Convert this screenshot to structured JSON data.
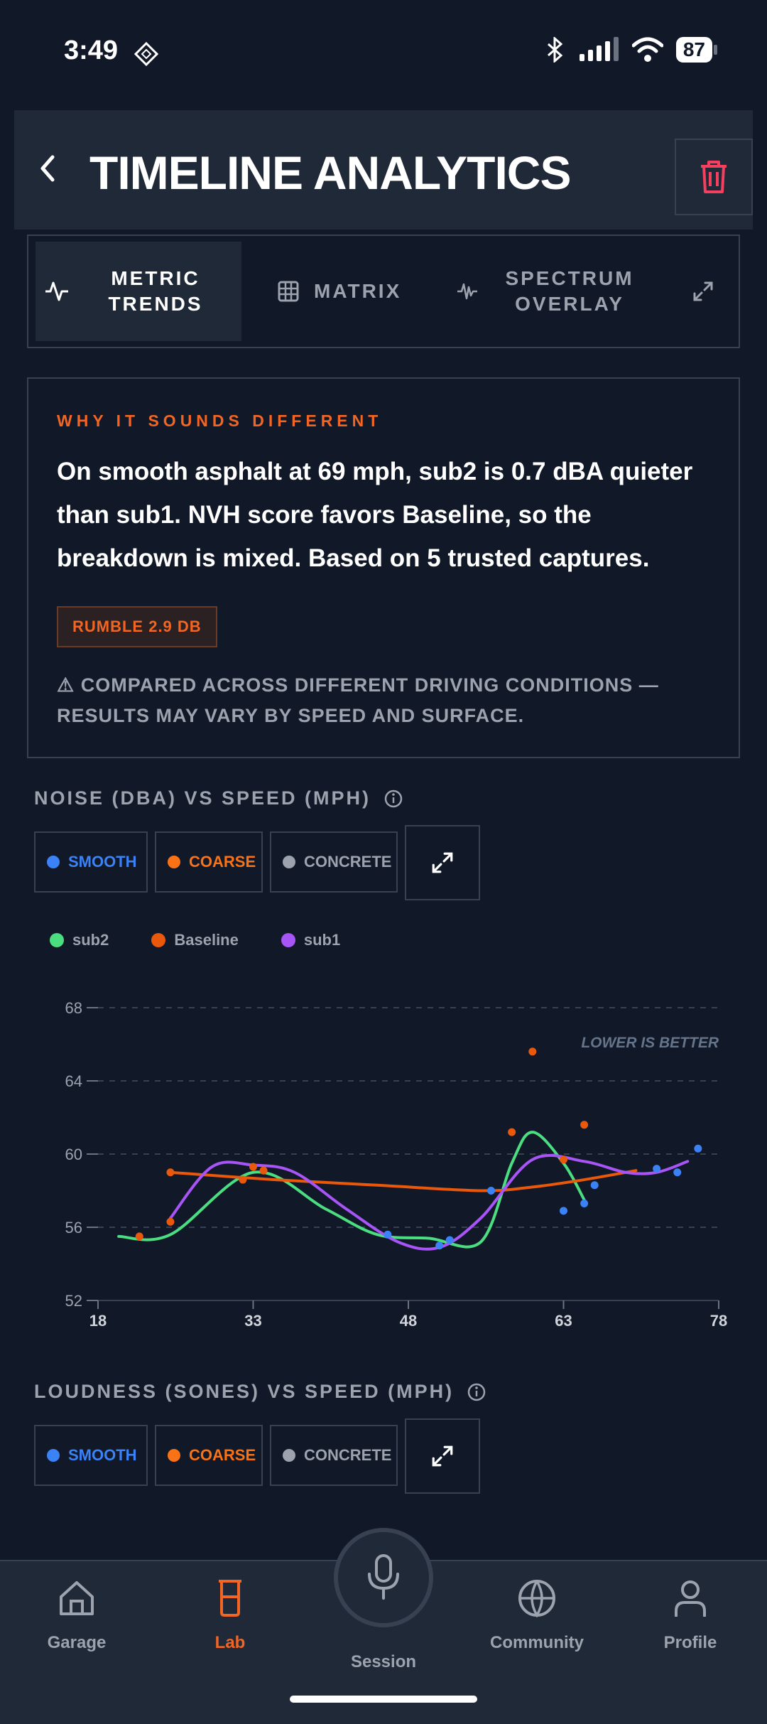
{
  "status": {
    "time": "3:49",
    "battery": "87"
  },
  "header": {
    "title": "TIMELINE ANALYTICS"
  },
  "tabs": [
    {
      "label_line1": "METRIC",
      "label_line2": "TRENDS",
      "active": true
    },
    {
      "label_line1": "MATRIX",
      "label_line2": "",
      "active": false
    },
    {
      "label_line1": "SPECTRUM",
      "label_line2": "OVERLAY",
      "active": false
    }
  ],
  "why": {
    "kicker": "WHY IT SOUNDS DIFFERENT",
    "body": "On smooth asphalt at 69 mph, sub2 is 0.7 dBA quieter than sub1. NVH score favors Baseline, so the breakdown is mixed. Based on 5 trusted captures.",
    "chip": "RUMBLE 2.9 DB",
    "warning": "⚠ COMPARED ACROSS DIFFERENT DRIVING CONDITIONS — RESULTS MAY VARY BY SPEED AND SURFACE."
  },
  "noise_section": {
    "title": "NOISE (DBA) VS SPEED (MPH)"
  },
  "loudness_section": {
    "title": "LOUDNESS (SONES) VS SPEED (MPH)"
  },
  "filters": {
    "smooth": "SMOOTH",
    "coarse": "COARSE",
    "concrete": "CONCRETE",
    "colors": {
      "smooth": "#3b82f6",
      "coarse": "#f97316",
      "concrete": "#9ca3af"
    }
  },
  "chart_data": {
    "type": "line",
    "xlim": [
      18,
      78
    ],
    "ylim": [
      52,
      68
    ],
    "x_ticks": [
      18,
      33,
      48,
      63,
      78
    ],
    "y_ticks": [
      52,
      56,
      60,
      64,
      68
    ],
    "annotation": "LOWER IS BETTER",
    "grid": true,
    "legend_position": "top-left",
    "series": [
      {
        "name": "sub2",
        "color": "#4ade80",
        "points": [
          [
            20,
            55.5
          ],
          [
            25,
            55.6
          ],
          [
            33,
            59
          ],
          [
            40,
            57
          ],
          [
            45,
            55.6
          ],
          [
            50,
            55.4
          ],
          [
            55,
            55.2
          ],
          [
            58,
            59.5
          ],
          [
            60,
            61.2
          ],
          [
            63,
            59.5
          ],
          [
            65,
            57.5
          ]
        ]
      },
      {
        "name": "Baseline",
        "color": "#ea580c",
        "points": [
          [
            25,
            59
          ],
          [
            35,
            58.6
          ],
          [
            45,
            58.3
          ],
          [
            55,
            58
          ],
          [
            60,
            58.2
          ],
          [
            65,
            58.6
          ],
          [
            70,
            59.1
          ]
        ]
      },
      {
        "name": "sub1",
        "color": "#a855f7",
        "points": [
          [
            25,
            56.5
          ],
          [
            29,
            59.3
          ],
          [
            33,
            59.4
          ],
          [
            37,
            59
          ],
          [
            42,
            57
          ],
          [
            47,
            55.2
          ],
          [
            51,
            54.9
          ],
          [
            55,
            56.5
          ],
          [
            60,
            59.7
          ],
          [
            65,
            59.6
          ],
          [
            69,
            59
          ],
          [
            72,
            59
          ],
          [
            75,
            59.6
          ]
        ]
      }
    ],
    "scatter": [
      {
        "surface": "smooth",
        "color": "#3b82f6",
        "points": [
          [
            46,
            55.6
          ],
          [
            51,
            55
          ],
          [
            52,
            55.3
          ],
          [
            56,
            58
          ],
          [
            63,
            56.9
          ],
          [
            65,
            57.3
          ],
          [
            66,
            58.3
          ],
          [
            72,
            59.2
          ],
          [
            74,
            59
          ],
          [
            76,
            60.3
          ]
        ]
      },
      {
        "surface": "coarse",
        "color": "#ea580c",
        "points": [
          [
            22,
            55.5
          ],
          [
            25,
            59
          ],
          [
            25,
            56.3
          ],
          [
            32,
            58.6
          ],
          [
            33,
            59.3
          ],
          [
            34,
            59.1
          ],
          [
            58,
            61.2
          ],
          [
            60,
            65.6
          ],
          [
            63,
            59.7
          ],
          [
            65,
            61.6
          ]
        ]
      }
    ]
  },
  "nav": {
    "items": [
      "Garage",
      "Lab",
      "Session",
      "Community",
      "Profile"
    ],
    "active": "Lab",
    "accent": "#f26522"
  }
}
